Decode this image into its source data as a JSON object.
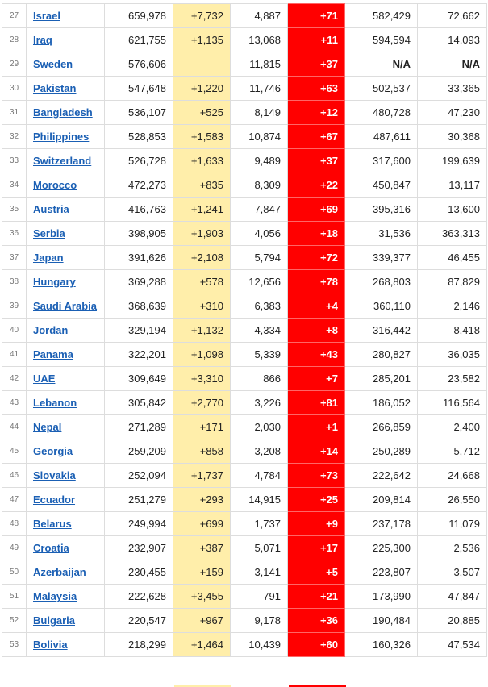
{
  "table": {
    "rows": [
      {
        "rank": "27",
        "country": "Israel",
        "total_cases": "659,978",
        "new_cases": "+7,732",
        "total_deaths": "4,887",
        "new_deaths": "+71",
        "recovered": "582,429",
        "active": "72,662"
      },
      {
        "rank": "28",
        "country": "Iraq",
        "total_cases": "621,755",
        "new_cases": "+1,135",
        "total_deaths": "13,068",
        "new_deaths": "+11",
        "recovered": "594,594",
        "active": "14,093"
      },
      {
        "rank": "29",
        "country": "Sweden",
        "total_cases": "576,606",
        "new_cases": "",
        "total_deaths": "11,815",
        "new_deaths": "+37",
        "recovered": "N/A",
        "active": "N/A"
      },
      {
        "rank": "30",
        "country": "Pakistan",
        "total_cases": "547,648",
        "new_cases": "+1,220",
        "total_deaths": "11,746",
        "new_deaths": "+63",
        "recovered": "502,537",
        "active": "33,365"
      },
      {
        "rank": "31",
        "country": "Bangladesh",
        "total_cases": "536,107",
        "new_cases": "+525",
        "total_deaths": "8,149",
        "new_deaths": "+12",
        "recovered": "480,728",
        "active": "47,230"
      },
      {
        "rank": "32",
        "country": "Philippines",
        "total_cases": "528,853",
        "new_cases": "+1,583",
        "total_deaths": "10,874",
        "new_deaths": "+67",
        "recovered": "487,611",
        "active": "30,368"
      },
      {
        "rank": "33",
        "country": "Switzerland",
        "total_cases": "526,728",
        "new_cases": "+1,633",
        "total_deaths": "9,489",
        "new_deaths": "+37",
        "recovered": "317,600",
        "active": "199,639"
      },
      {
        "rank": "34",
        "country": "Morocco",
        "total_cases": "472,273",
        "new_cases": "+835",
        "total_deaths": "8,309",
        "new_deaths": "+22",
        "recovered": "450,847",
        "active": "13,117"
      },
      {
        "rank": "35",
        "country": "Austria",
        "total_cases": "416,763",
        "new_cases": "+1,241",
        "total_deaths": "7,847",
        "new_deaths": "+69",
        "recovered": "395,316",
        "active": "13,600"
      },
      {
        "rank": "36",
        "country": "Serbia",
        "total_cases": "398,905",
        "new_cases": "+1,903",
        "total_deaths": "4,056",
        "new_deaths": "+18",
        "recovered": "31,536",
        "active": "363,313"
      },
      {
        "rank": "37",
        "country": "Japan",
        "total_cases": "391,626",
        "new_cases": "+2,108",
        "total_deaths": "5,794",
        "new_deaths": "+72",
        "recovered": "339,377",
        "active": "46,455"
      },
      {
        "rank": "38",
        "country": "Hungary",
        "total_cases": "369,288",
        "new_cases": "+578",
        "total_deaths": "12,656",
        "new_deaths": "+78",
        "recovered": "268,803",
        "active": "87,829"
      },
      {
        "rank": "39",
        "country": "Saudi Arabia",
        "total_cases": "368,639",
        "new_cases": "+310",
        "total_deaths": "6,383",
        "new_deaths": "+4",
        "recovered": "360,110",
        "active": "2,146"
      },
      {
        "rank": "40",
        "country": "Jordan",
        "total_cases": "329,194",
        "new_cases": "+1,132",
        "total_deaths": "4,334",
        "new_deaths": "+8",
        "recovered": "316,442",
        "active": "8,418"
      },
      {
        "rank": "41",
        "country": "Panama",
        "total_cases": "322,201",
        "new_cases": "+1,098",
        "total_deaths": "5,339",
        "new_deaths": "+43",
        "recovered": "280,827",
        "active": "36,035"
      },
      {
        "rank": "42",
        "country": "UAE",
        "total_cases": "309,649",
        "new_cases": "+3,310",
        "total_deaths": "866",
        "new_deaths": "+7",
        "recovered": "285,201",
        "active": "23,582"
      },
      {
        "rank": "43",
        "country": "Lebanon",
        "total_cases": "305,842",
        "new_cases": "+2,770",
        "total_deaths": "3,226",
        "new_deaths": "+81",
        "recovered": "186,052",
        "active": "116,564"
      },
      {
        "rank": "44",
        "country": "Nepal",
        "total_cases": "271,289",
        "new_cases": "+171",
        "total_deaths": "2,030",
        "new_deaths": "+1",
        "recovered": "266,859",
        "active": "2,400"
      },
      {
        "rank": "45",
        "country": "Georgia",
        "total_cases": "259,209",
        "new_cases": "+858",
        "total_deaths": "3,208",
        "new_deaths": "+14",
        "recovered": "250,289",
        "active": "5,712"
      },
      {
        "rank": "46",
        "country": "Slovakia",
        "total_cases": "252,094",
        "new_cases": "+1,737",
        "total_deaths": "4,784",
        "new_deaths": "+73",
        "recovered": "222,642",
        "active": "24,668"
      },
      {
        "rank": "47",
        "country": "Ecuador",
        "total_cases": "251,279",
        "new_cases": "+293",
        "total_deaths": "14,915",
        "new_deaths": "+25",
        "recovered": "209,814",
        "active": "26,550"
      },
      {
        "rank": "48",
        "country": "Belarus",
        "total_cases": "249,994",
        "new_cases": "+699",
        "total_deaths": "1,737",
        "new_deaths": "+9",
        "recovered": "237,178",
        "active": "11,079"
      },
      {
        "rank": "49",
        "country": "Croatia",
        "total_cases": "232,907",
        "new_cases": "+387",
        "total_deaths": "5,071",
        "new_deaths": "+17",
        "recovered": "225,300",
        "active": "2,536"
      },
      {
        "rank": "50",
        "country": "Azerbaijan",
        "total_cases": "230,455",
        "new_cases": "+159",
        "total_deaths": "3,141",
        "new_deaths": "+5",
        "recovered": "223,807",
        "active": "3,507"
      },
      {
        "rank": "51",
        "country": "Malaysia",
        "total_cases": "222,628",
        "new_cases": "+3,455",
        "total_deaths": "791",
        "new_deaths": "+21",
        "recovered": "173,990",
        "active": "47,847"
      },
      {
        "rank": "52",
        "country": "Bulgaria",
        "total_cases": "220,547",
        "new_cases": "+967",
        "total_deaths": "9,178",
        "new_deaths": "+36",
        "recovered": "190,484",
        "active": "20,885"
      },
      {
        "rank": "53",
        "country": "Bolivia",
        "total_cases": "218,299",
        "new_cases": "+1,464",
        "total_deaths": "10,439",
        "new_deaths": "+60",
        "recovered": "160,326",
        "active": "47,534"
      }
    ]
  },
  "colors": {
    "new_cases_bg": "#ffeeaa",
    "new_deaths_bg": "#ff0000",
    "link": "#1a5fb4"
  }
}
